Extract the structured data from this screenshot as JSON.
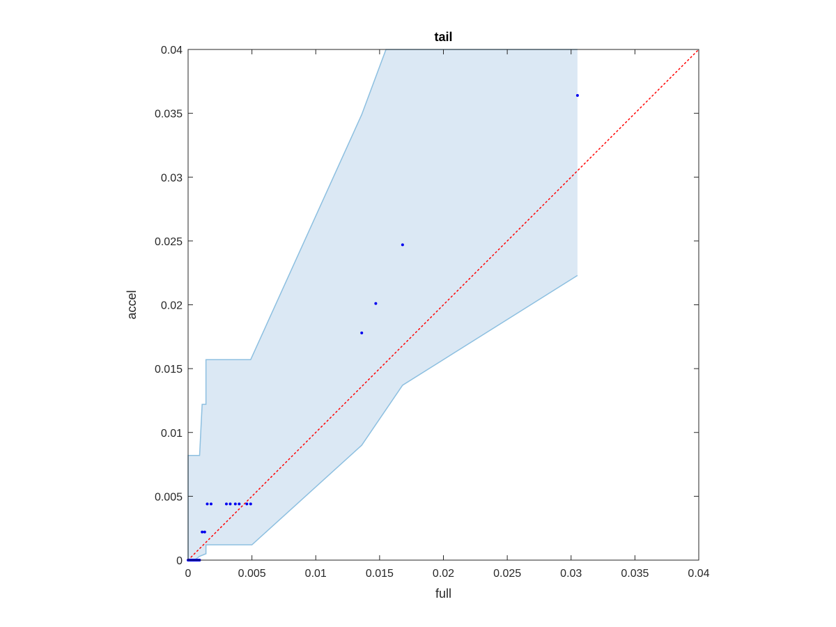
{
  "chart_data": {
    "type": "scatter",
    "title": "tail",
    "xlabel": "full",
    "ylabel": "accel",
    "xlim": [
      0,
      0.04
    ],
    "ylim": [
      0,
      0.04
    ],
    "x_ticks": [
      0,
      0.005,
      0.01,
      0.015,
      0.02,
      0.025,
      0.03,
      0.035,
      0.04
    ],
    "x_tick_labels": [
      "0",
      "0.005",
      "0.01",
      "0.015",
      "0.02",
      "0.025",
      "0.03",
      "0.035",
      "0.04"
    ],
    "y_ticks": [
      0,
      0.005,
      0.01,
      0.015,
      0.02,
      0.025,
      0.03,
      0.035,
      0.04
    ],
    "y_tick_labels": [
      "0",
      "0.005",
      "0.01",
      "0.015",
      "0.02",
      "0.025",
      "0.03",
      "0.035",
      "0.04"
    ],
    "grid": false,
    "reference_line": {
      "from": [
        0,
        0
      ],
      "to": [
        0.04,
        0.04
      ],
      "style": "dotted",
      "color": "#ff0000"
    },
    "band": {
      "upper": [
        [
          0,
          0
        ],
        [
          0,
          0.0082
        ],
        [
          0.0009,
          0.0082
        ],
        [
          0.0011,
          0.0122
        ],
        [
          0.0014,
          0.0122
        ],
        [
          0.0014,
          0.0157
        ],
        [
          0.0049,
          0.0157
        ],
        [
          0.0136,
          0.0349
        ],
        [
          0.0155,
          0.04
        ],
        [
          0.0305,
          0.04
        ]
      ],
      "lower": [
        [
          0.0305,
          0.0223
        ],
        [
          0.0168,
          0.0137
        ],
        [
          0.0136,
          0.009
        ],
        [
          0.005,
          0.0012
        ],
        [
          0.0014,
          0.0012
        ],
        [
          0.0014,
          0.0005
        ],
        [
          0.0009,
          0.0003
        ],
        [
          0.0005,
          0
        ],
        [
          0,
          0
        ]
      ],
      "fill_color": "#dbe8f4",
      "edge_color": "#8cbfe0"
    },
    "series": [
      {
        "color": "#0000ee",
        "points": [
          [
            0,
            0
          ],
          [
            0.0001,
            0
          ],
          [
            0.0002,
            0
          ],
          [
            0.0003,
            0
          ],
          [
            0.0004,
            0
          ],
          [
            0.0005,
            0
          ],
          [
            0.0006,
            0
          ],
          [
            0.0007,
            0
          ],
          [
            0.0008,
            0
          ],
          [
            0.0009,
            0
          ],
          [
            0.0011,
            0.0022
          ],
          [
            0.0013,
            0.0022
          ],
          [
            0.0015,
            0.0044
          ],
          [
            0.0018,
            0.0044
          ],
          [
            0.003,
            0.0044
          ],
          [
            0.0033,
            0.0044
          ],
          [
            0.0037,
            0.0044
          ],
          [
            0.004,
            0.0044
          ],
          [
            0.0046,
            0.0044
          ],
          [
            0.0049,
            0.0044
          ],
          [
            0.0136,
            0.0178
          ],
          [
            0.0147,
            0.0201
          ],
          [
            0.0168,
            0.0247
          ],
          [
            0.0305,
            0.0364
          ]
        ]
      }
    ]
  }
}
